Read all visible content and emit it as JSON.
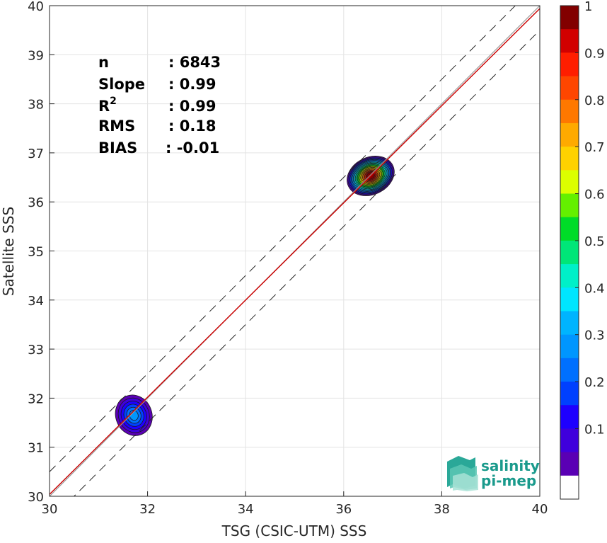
{
  "chart_data": {
    "type": "contour",
    "xlabel": "TSG (CSIC-UTM) SSS",
    "ylabel": "Satellite SSS",
    "xlim": [
      30,
      40
    ],
    "ylim": [
      30,
      40
    ],
    "xticks": [
      30,
      32,
      34,
      36,
      38,
      40
    ],
    "yticks": [
      30,
      31,
      32,
      33,
      34,
      35,
      36,
      37,
      38,
      39,
      40
    ],
    "grid": true,
    "identity_line": {
      "slope": 1,
      "intercept": 0,
      "color": "#9a9a9a"
    },
    "fit_line": {
      "slope": 0.99,
      "intercept": 0.34,
      "color": "#cc0000"
    },
    "band_lines": [
      {
        "slope": 1,
        "intercept": 0.5,
        "style": "dashed"
      },
      {
        "slope": 1,
        "intercept": -0.5,
        "style": "dashed"
      }
    ],
    "density_clusters": [
      {
        "center": [
          31.72,
          31.65
        ],
        "peak_density": 0.3
      },
      {
        "center": [
          36.55,
          36.53
        ],
        "peak_density": 1.0
      }
    ],
    "stats": [
      {
        "label": "n",
        "sup": "",
        "value": ": 6843"
      },
      {
        "label": "Slope",
        "sup": "",
        "value": ": 0.99"
      },
      {
        "label": "R",
        "sup": "2",
        "value": ": 0.99"
      },
      {
        "label": "RMS",
        "sup": "",
        "value": ": 0.18"
      },
      {
        "label": "BIAS",
        "sup": "",
        "value": ": -0.01"
      }
    ],
    "colorbar": {
      "range": [
        0,
        1
      ],
      "ticks": [
        "0.1",
        "0.2",
        "0.3",
        "0.4",
        "0.5",
        "0.6",
        "0.7",
        "0.8",
        "0.9",
        "1"
      ],
      "colors": [
        "#ffffff",
        "#5a00b4",
        "#3f00dc",
        "#1e00ff",
        "#0040ff",
        "#0070ff",
        "#0096ff",
        "#00b4ff",
        "#00e6ff",
        "#00f0c8",
        "#00e678",
        "#00dc28",
        "#64f000",
        "#dcff00",
        "#ffd200",
        "#ffaa00",
        "#ff7800",
        "#ff4600",
        "#ff1e00",
        "#d20000",
        "#820000"
      ]
    }
  },
  "logo": {
    "line1": "salinity",
    "line2": "pi-mep"
  }
}
